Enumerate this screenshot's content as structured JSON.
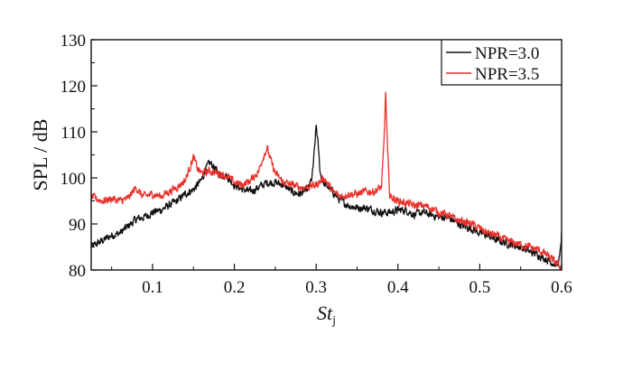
{
  "chart_data": {
    "type": "line",
    "title": "",
    "xlabel": "St",
    "xlabel_sub": "j",
    "ylabel": "SPL / dB",
    "xlim": [
      0.025,
      0.6
    ],
    "ylim": [
      80,
      130
    ],
    "xticks": [
      0.1,
      0.2,
      0.3,
      0.4,
      0.5,
      0.6
    ],
    "xtick_labels": [
      "0.1",
      "0.2",
      "0.3",
      "0.4",
      "0.5",
      "0.6"
    ],
    "yticks": [
      80,
      90,
      100,
      110,
      120,
      130
    ],
    "ytick_labels": [
      "80",
      "90",
      "100",
      "110",
      "120",
      "130"
    ],
    "grid": false,
    "legend_position": "top-right",
    "series": [
      {
        "name": "NPR=3.0",
        "color": "#111111",
        "x": [
          0.025,
          0.03,
          0.04,
          0.05,
          0.06,
          0.07,
          0.08,
          0.09,
          0.1,
          0.11,
          0.12,
          0.13,
          0.14,
          0.15,
          0.16,
          0.165,
          0.17,
          0.175,
          0.18,
          0.19,
          0.2,
          0.21,
          0.22,
          0.23,
          0.24,
          0.25,
          0.26,
          0.27,
          0.28,
          0.29,
          0.295,
          0.298,
          0.3,
          0.302,
          0.305,
          0.31,
          0.315,
          0.32,
          0.33,
          0.34,
          0.35,
          0.36,
          0.37,
          0.38,
          0.39,
          0.4,
          0.41,
          0.42,
          0.43,
          0.44,
          0.45,
          0.46,
          0.47,
          0.48,
          0.49,
          0.5,
          0.51,
          0.52,
          0.53,
          0.54,
          0.55,
          0.56,
          0.57,
          0.58,
          0.59,
          0.595,
          0.598,
          0.6
        ],
        "y": [
          85,
          85.5,
          86.5,
          87.5,
          88,
          89.5,
          91,
          91.5,
          92.5,
          93,
          94,
          95,
          96.5,
          97.5,
          99.5,
          102,
          103.2,
          102.5,
          101,
          100.5,
          98.5,
          97.5,
          97,
          98,
          99,
          99,
          98.5,
          97,
          96.5,
          97.5,
          100,
          106,
          111.5,
          108,
          101,
          98.5,
          98,
          97,
          95,
          94,
          93.5,
          93.5,
          93,
          92.5,
          92.5,
          93,
          93,
          92,
          92.5,
          92,
          91.5,
          91.5,
          90.5,
          89.5,
          89,
          88,
          87.5,
          86.5,
          86,
          85.5,
          85,
          84,
          83.5,
          82.5,
          81.5,
          81,
          83,
          88
        ]
      },
      {
        "name": "NPR=3.5",
        "color": "#e8302b",
        "x": [
          0.025,
          0.03,
          0.04,
          0.05,
          0.06,
          0.07,
          0.08,
          0.085,
          0.09,
          0.1,
          0.11,
          0.12,
          0.13,
          0.14,
          0.145,
          0.15,
          0.155,
          0.16,
          0.17,
          0.18,
          0.19,
          0.2,
          0.21,
          0.22,
          0.23,
          0.235,
          0.24,
          0.245,
          0.25,
          0.26,
          0.27,
          0.28,
          0.29,
          0.3,
          0.31,
          0.32,
          0.33,
          0.34,
          0.35,
          0.36,
          0.37,
          0.375,
          0.38,
          0.383,
          0.385,
          0.387,
          0.39,
          0.4,
          0.41,
          0.42,
          0.43,
          0.44,
          0.45,
          0.46,
          0.47,
          0.48,
          0.49,
          0.5,
          0.51,
          0.52,
          0.53,
          0.54,
          0.55,
          0.56,
          0.57,
          0.58,
          0.59,
          0.6
        ],
        "y": [
          96,
          95.5,
          95,
          95.5,
          95,
          95.5,
          98,
          96.5,
          96,
          96.5,
          96,
          97,
          98,
          99.5,
          102,
          104.5,
          102,
          101,
          101.5,
          101,
          100.5,
          99,
          98.5,
          99.5,
          101.5,
          104.5,
          106.5,
          103.5,
          101,
          99,
          98.5,
          98,
          98,
          98.5,
          100,
          97,
          96,
          96.5,
          96.5,
          97,
          97,
          97.5,
          98,
          108,
          119,
          107,
          96,
          95,
          94.5,
          94,
          94,
          93.5,
          92.5,
          92,
          91,
          90.5,
          90,
          89,
          88,
          87.5,
          86.5,
          86,
          85.5,
          85,
          84.5,
          83.5,
          82,
          80.5
        ]
      }
    ]
  }
}
